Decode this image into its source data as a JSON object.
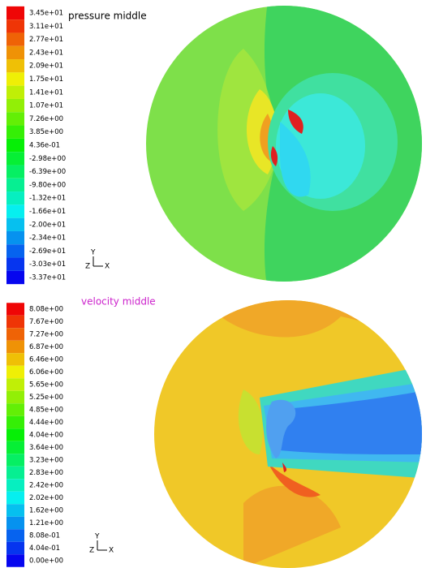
{
  "top_panel": {
    "title": "pressure middle",
    "legend_labels": [
      "3.45e+01",
      "3.11e+01",
      "2.77e+01",
      "2.43e+01",
      "2.09e+01",
      "1.75e+01",
      "1.41e+01",
      "1.07e+01",
      "7.26e+00",
      "3.85e+00",
      "4.36e-01",
      "-2.98e+00",
      "-6.39e+00",
      "-9.80e+00",
      "-1.32e+01",
      "-1.66e+01",
      "-2.00e+01",
      "-2.34e+01",
      "-2.69e+01",
      "-3.03e+01",
      "-3.37e+01"
    ],
    "axes": {
      "y": "Y",
      "z": "Z",
      "x": "X"
    }
  },
  "bottom_panel": {
    "title": "velocity middle",
    "legend_labels": [
      "8.08e+00",
      "7.67e+00",
      "7.27e+00",
      "6.87e+00",
      "6.46e+00",
      "6.06e+00",
      "5.65e+00",
      "5.25e+00",
      "4.85e+00",
      "4.44e+00",
      "4.04e+00",
      "3.64e+00",
      "3.23e+00",
      "2.83e+00",
      "2.42e+00",
      "2.02e+00",
      "1.62e+00",
      "1.21e+00",
      "8.08e-01",
      "4.04e-01",
      "0.00e+00"
    ],
    "axes": {
      "y": "Y",
      "z": "Z",
      "x": "X"
    }
  }
}
